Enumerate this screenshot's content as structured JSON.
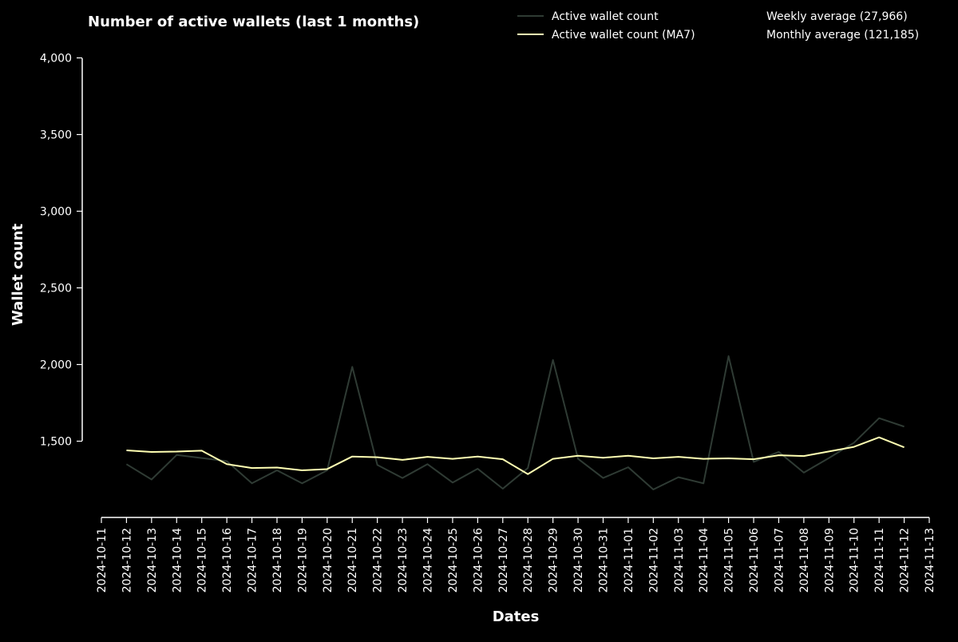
{
  "chart_data": {
    "type": "line",
    "title": "Number of active wallets (last 1 months)",
    "xlabel": "Dates",
    "ylabel": "Wallet count",
    "ylim": [
      1000,
      4000
    ],
    "xlim": [
      "2024-10-11",
      "2024-11-13"
    ],
    "y_ticks": [
      1500,
      2000,
      2500,
      3000,
      3500,
      4000
    ],
    "y_tick_labels": [
      "1,500",
      "2,000",
      "2,500",
      "3,000",
      "3,500",
      "4,000"
    ],
    "x_ticks": [
      "2024-10-11",
      "2024-10-12",
      "2024-10-13",
      "2024-10-14",
      "2024-10-15",
      "2024-10-16",
      "2024-10-17",
      "2024-10-18",
      "2024-10-19",
      "2024-10-20",
      "2024-10-21",
      "2024-10-22",
      "2024-10-23",
      "2024-10-24",
      "2024-10-25",
      "2024-10-26",
      "2024-10-27",
      "2024-10-28",
      "2024-10-29",
      "2024-10-30",
      "2024-10-31",
      "2024-11-01",
      "2024-11-02",
      "2024-11-03",
      "2024-11-04",
      "2024-11-05",
      "2024-11-06",
      "2024-11-07",
      "2024-11-08",
      "2024-11-09",
      "2024-11-10",
      "2024-11-11",
      "2024-11-12",
      "2024-11-13"
    ],
    "grid": false,
    "legend_position": "top-right",
    "x": [
      "2024-10-12",
      "2024-10-13",
      "2024-10-14",
      "2024-10-15",
      "2024-10-16",
      "2024-10-17",
      "2024-10-18",
      "2024-10-19",
      "2024-10-20",
      "2024-10-21",
      "2024-10-22",
      "2024-10-23",
      "2024-10-24",
      "2024-10-25",
      "2024-10-26",
      "2024-10-27",
      "2024-10-28",
      "2024-10-29",
      "2024-10-30",
      "2024-10-31",
      "2024-11-01",
      "2024-11-02",
      "2024-11-03",
      "2024-11-04",
      "2024-11-05",
      "2024-11-06",
      "2024-11-07",
      "2024-11-08",
      "2024-11-09",
      "2024-11-10",
      "2024-11-11",
      "2024-11-12"
    ],
    "series": [
      {
        "name": "Active wallet count",
        "color": "#2f3b34",
        "values": [
          1350,
          1250,
          1410,
          1390,
          1370,
          1225,
          1310,
          1225,
          1310,
          1985,
          1345,
          1260,
          1350,
          1230,
          1320,
          1190,
          1325,
          2030,
          1385,
          1260,
          1330,
          1185,
          1265,
          1225,
          2055,
          1365,
          1430,
          1295,
          1390,
          1490,
          1650,
          1595
        ]
      },
      {
        "name": "Active wallet count (MA7)",
        "color": "#ffffb3",
        "values": [
          1440,
          1430,
          1432,
          1438,
          1350,
          1325,
          1328,
          1310,
          1318,
          1400,
          1395,
          1378,
          1398,
          1385,
          1400,
          1382,
          1285,
          1385,
          1405,
          1392,
          1405,
          1388,
          1398,
          1385,
          1388,
          1382,
          1408,
          1403,
          1433,
          1463,
          1525,
          1460
        ]
      }
    ],
    "annotations": [
      "Weekly average (27,966)",
      "Monthly average (121,185)"
    ]
  }
}
